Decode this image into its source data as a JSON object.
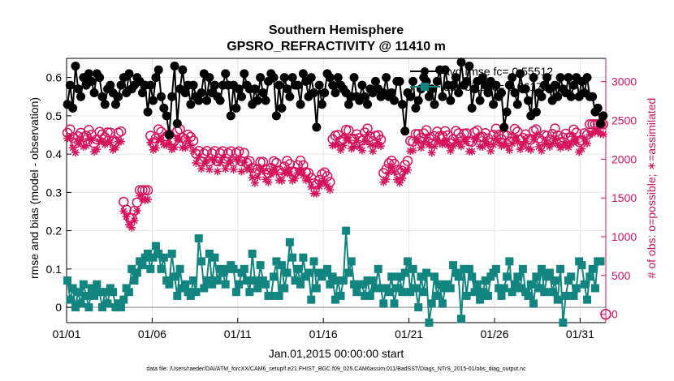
{
  "chart_data": {
    "type": "line",
    "title": "Southern Hemisphere",
    "subtitle": "GPSRO_REFRACTIVITY @ 11410 m",
    "xlabel": "Jan.01,2015 00:00:00 start",
    "ylabel_left": "rmse and bias (model - observation)",
    "ylabel_right": "# of obs: o=possible; ∗=assimilated",
    "footnote": "data file: /Users/raeder/DAI/ATM_forcXX/CAM6_setup/f.e21.FHIST_BGC.f09_025.CAM6assim.011/BadSST/Diags_NTrS_2015-01/obs_diag_output.nc",
    "x_range_days": [
      0,
      31.5
    ],
    "ylim_left": [
      -0.04,
      0.65
    ],
    "ylim_right": [
      -108,
      3300
    ],
    "xticks": [
      {
        "day": 0,
        "label": "01/01"
      },
      {
        "day": 5,
        "label": "01/06"
      },
      {
        "day": 10,
        "label": "01/11"
      },
      {
        "day": 15,
        "label": "01/16"
      },
      {
        "day": 20,
        "label": "01/21"
      },
      {
        "day": 25,
        "label": "01/26"
      },
      {
        "day": 30,
        "label": "01/31"
      }
    ],
    "yticks_left": [
      {
        "value": 0,
        "label": "0"
      },
      {
        "value": 0.1,
        "label": "0.1"
      },
      {
        "value": 0.2,
        "label": "0.2"
      },
      {
        "value": 0.3,
        "label": "0.3"
      },
      {
        "value": 0.4,
        "label": "0.4"
      },
      {
        "value": 0.5,
        "label": "0.5"
      },
      {
        "value": 0.6,
        "label": "0.6"
      }
    ],
    "yticks_right": [
      {
        "value": 0,
        "label": "0"
      },
      {
        "value": 500,
        "label": "500"
      },
      {
        "value": 1000,
        "label": "1000"
      },
      {
        "value": 1500,
        "label": "1500"
      },
      {
        "value": 2000,
        "label": "2000"
      },
      {
        "value": 2500,
        "label": "2500"
      },
      {
        "value": 3000,
        "label": "3000"
      }
    ],
    "legend": [
      {
        "label": "forecast: mean=0.55512",
        "displayed": "...avg rmse ... = 0.55512",
        "name": "rmse"
      },
      {
        "label": "forecast: mean=0.06178",
        "displayed": "...bias ... = 0.06178",
        "name": "bias"
      }
    ],
    "legend_text": [
      "avg rmse fc= 0.55512",
      "obs bias fc= 0.06178"
    ],
    "colors": {
      "rmse": "#000000",
      "bias": "#138581",
      "obs": "#d6125b",
      "zero_line": "#b0b0b0"
    },
    "rmse": [
      0.53,
      0.58,
      0.52,
      0.63,
      0.57,
      0.55,
      0.6,
      0.58,
      0.61,
      0.59,
      0.56,
      0.61,
      0.6,
      0.55,
      0.53,
      0.57,
      0.58,
      0.56,
      0.53,
      0.55,
      0.58,
      0.6,
      0.56,
      0.61,
      0.57,
      0.58,
      0.6,
      0.59,
      0.56,
      0.58,
      0.51,
      0.58,
      0.54,
      0.6,
      0.62,
      0.55,
      0.52,
      0.5,
      0.45,
      0.55,
      0.63,
      0.48,
      0.57,
      0.62,
      0.56,
      0.58,
      0.53,
      0.58,
      0.55,
      0.54,
      0.56,
      0.61,
      0.54,
      0.6,
      0.56,
      0.58,
      0.55,
      0.54,
      0.58,
      0.61,
      0.58,
      0.5,
      0.58,
      0.52,
      0.57,
      0.55,
      0.61,
      0.58,
      0.57,
      0.53,
      0.57,
      0.54,
      0.6,
      0.56,
      0.54,
      0.59,
      0.61,
      0.6,
      0.5,
      0.58,
      0.52,
      0.6,
      0.57,
      0.55,
      0.6,
      0.58,
      0.58,
      0.53,
      0.61,
      0.59,
      0.55,
      0.6,
      0.56,
      0.47,
      0.58,
      0.53,
      0.56,
      0.61,
      0.6,
      0.58,
      0.56,
      0.6,
      0.58,
      0.57,
      0.56,
      0.53,
      0.55,
      0.6,
      0.55,
      0.54,
      0.58,
      0.55,
      0.53,
      0.57,
      0.56,
      0.59,
      0.57,
      0.55,
      0.56,
      0.6,
      0.55,
      0.56,
      0.54,
      0.59,
      0.59,
      0.53,
      0.46,
      0.56,
      0.55,
      0.59,
      0.52,
      0.54,
      0.57,
      0.6,
      0.59,
      0.55,
      0.57,
      0.53,
      0.59,
      0.62,
      0.55,
      0.62,
      0.58,
      0.54,
      0.58,
      0.6,
      0.56,
      0.64,
      0.58,
      0.59,
      0.63,
      0.52,
      0.57,
      0.59,
      0.54,
      0.6,
      0.58,
      0.56,
      0.59,
      0.53,
      0.58,
      0.55,
      0.56,
      0.47,
      0.51,
      0.58,
      0.6,
      0.56,
      0.53,
      0.61,
      0.57,
      0.57,
      0.54,
      0.5,
      0.6,
      0.51,
      0.56,
      0.55,
      0.58,
      0.6,
      0.57,
      0.54,
      0.58,
      0.55,
      0.6,
      0.57,
      0.56,
      0.6,
      0.55,
      0.58,
      0.6,
      0.55,
      0.59,
      0.56,
      0.6,
      0.55,
      0.55,
      0.51,
      0.52,
      0.48,
      0.5
    ],
    "bias": [
      0.07,
      0.02,
      0.05,
      0.0,
      0.04,
      0.01,
      0.06,
      0.03,
      0.0,
      0.05,
      0.03,
      0.06,
      0.04,
      0.0,
      0.04,
      0.01,
      0.05,
      0.04,
      0.0,
      0.01,
      0.0,
      0.02,
      0.05,
      0.04,
      0.1,
      0.07,
      0.09,
      0.12,
      0.11,
      0.13,
      0.14,
      0.1,
      0.13,
      0.16,
      0.14,
      0.1,
      0.13,
      0.07,
      0.06,
      0.14,
      0.08,
      0.03,
      0.1,
      0.05,
      0.06,
      0.04,
      0.03,
      0.07,
      0.04,
      0.18,
      0.12,
      0.05,
      0.07,
      0.14,
      0.06,
      0.13,
      0.07,
      0.1,
      0.09,
      0.06,
      0.1,
      0.11,
      0.1,
      0.04,
      0.06,
      0.09,
      0.1,
      0.07,
      0.04,
      0.14,
      0.07,
      0.05,
      0.11,
      0.07,
      0.06,
      0.03,
      0.03,
      0.08,
      0.12,
      0.03,
      0.11,
      0.05,
      0.09,
      0.17,
      0.13,
      0.07,
      0.1,
      0.06,
      0.13,
      0.08,
      0.09,
      0.02,
      0.12,
      0.05,
      0.09,
      0.08,
      0.09,
      0.1,
      0.06,
      0.08,
      0.02,
      0.07,
      0.03,
      0.07,
      0.2,
      0.09,
      0.12,
      0.06,
      0.04,
      0.06,
      0.06,
      0.03,
      0.07,
      0.03,
      0.07,
      0.05,
      0.1,
      0.05,
      0.01,
      0.05,
      0.04,
      0.08,
      0.01,
      0.05,
      0.08,
      0.04,
      0.09,
      0.12,
      0.04,
      0.1,
      0.05,
      0.0,
      0.08,
      0.04,
      0.09,
      -0.04,
      0.01,
      0.08,
      0.03,
      0.06,
      0.01,
      0.05,
      0.06,
      0.05,
      0.11,
      0.09,
      0.08,
      -0.03,
      0.1,
      0.03,
      0.1,
      0.08,
      0.04,
      0.06,
      0.02,
      0.04,
      0.07,
      0.03,
      0.08,
      0.09,
      0.1,
      0.05,
      0.03,
      0.05,
      0.08,
      0.12,
      0.04,
      0.06,
      0.08,
      0.05,
      0.1,
      0.04,
      0.03,
      0.06,
      0.01,
      0.08,
      0.05,
      0.1,
      0.04,
      0.08,
      0.09,
      0.04,
      0.07,
      0.02,
      0.1,
      -0.04,
      0.03,
      0.07,
      0.08,
      0.03,
      0.05,
      0.12,
      0.11,
      0.06,
      0.02,
      0.08,
      0.1,
      0.05,
      0.12,
      0.12
    ]
  }
}
